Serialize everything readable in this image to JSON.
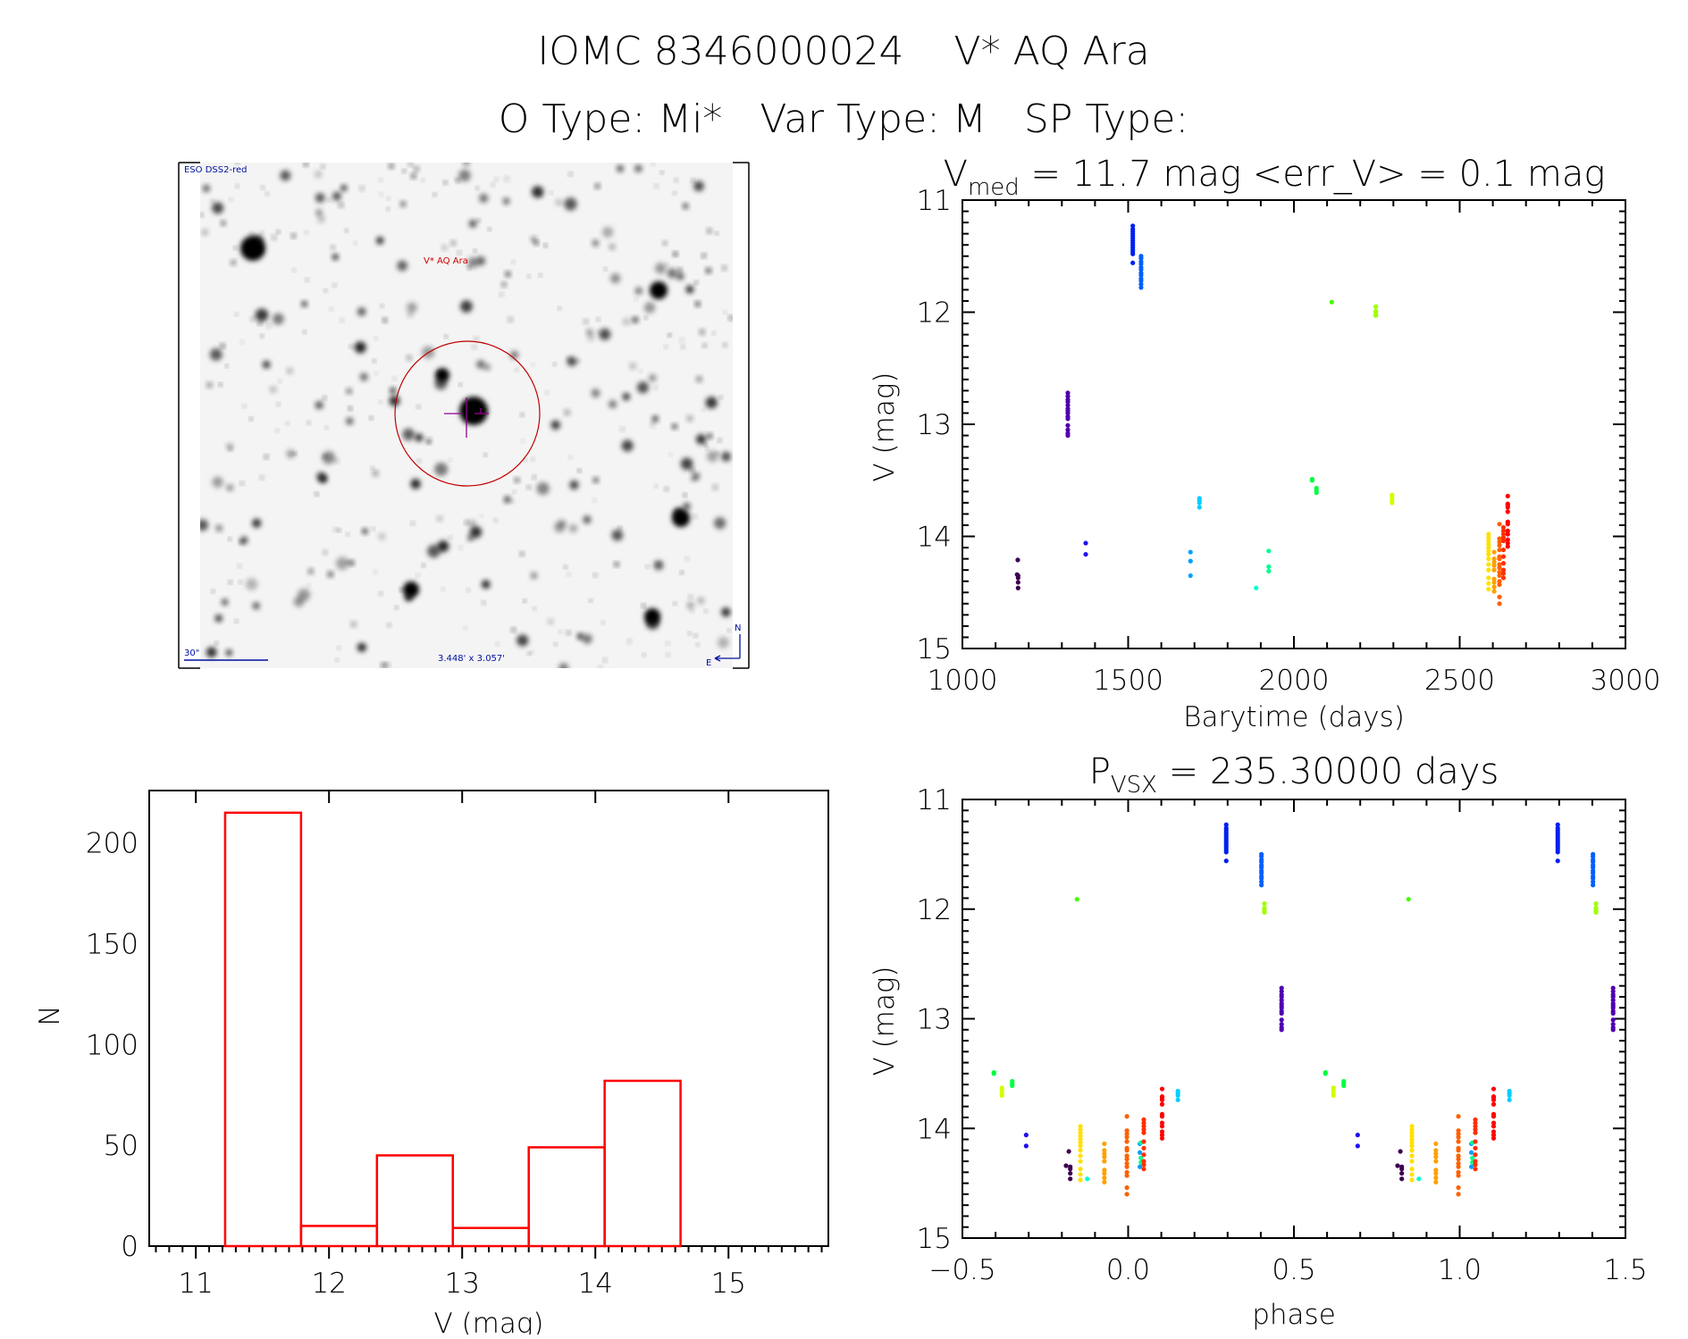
{
  "header": {
    "title": "IOMC 8346000024    V* AQ Ara",
    "subtitle": "O Type: Mi*   Var Type: M   SP Type:"
  },
  "image": {
    "survey_label": "ESO DSS2-red",
    "target_label": "V* AQ Ara",
    "scale_label": "30\"",
    "fov_label": "3.448' x 3.057'",
    "north_label": "N",
    "east_label": "E"
  },
  "chart_data": [
    {
      "type": "scatter",
      "title_main": "V",
      "title_sub": "med",
      "title_rest": " = 11.7 mag <err_V> = 0.1 mag",
      "xlabel": "Barytime (days)",
      "ylabel": "V (mag)",
      "xlim": [
        1000,
        3000
      ],
      "ylim": [
        15,
        11
      ],
      "x_ticks": [
        "1000",
        "1500",
        "2000",
        "2500",
        "3000"
      ],
      "x_tick_values": [
        1000,
        1500,
        2000,
        2500,
        3000
      ],
      "y_ticks": [
        "11",
        "12",
        "13",
        "14",
        "15"
      ],
      "y_tick_values": [
        11,
        12,
        13,
        14,
        15
      ],
      "series": [
        {
          "color": "#3c0050",
          "points": [
            [
              1167,
              14.21
            ],
            [
              1165,
              14.34
            ],
            [
              1168,
              14.35
            ],
            [
              1168,
              14.37
            ],
            [
              1168,
              14.41
            ],
            [
              1168,
              14.46
            ]
          ]
        },
        {
          "color": "#5000b0",
          "points": [
            [
              1318,
              12.72
            ],
            [
              1318,
              12.75
            ],
            [
              1318,
              12.78
            ],
            [
              1318,
              12.8
            ],
            [
              1318,
              12.83
            ],
            [
              1318,
              12.86
            ],
            [
              1318,
              12.88
            ],
            [
              1318,
              12.9
            ],
            [
              1318,
              12.93
            ],
            [
              1318,
              12.95
            ],
            [
              1318,
              13.01
            ],
            [
              1318,
              13.05
            ],
            [
              1318,
              13.08
            ],
            [
              1318,
              13.1
            ]
          ]
        },
        {
          "color": "#2010f0",
          "points": [
            [
              1372,
              14.06
            ],
            [
              1372,
              14.16
            ]
          ]
        },
        {
          "color": "#0020f0",
          "points": [
            [
              1514,
              11.23
            ],
            [
              1514,
              11.26
            ],
            [
              1514,
              11.28
            ],
            [
              1514,
              11.3
            ],
            [
              1514,
              11.32
            ],
            [
              1514,
              11.34
            ],
            [
              1514,
              11.36
            ],
            [
              1514,
              11.38
            ],
            [
              1514,
              11.4
            ],
            [
              1514,
              11.42
            ],
            [
              1514,
              11.44
            ],
            [
              1514,
              11.46
            ],
            [
              1514,
              11.48
            ],
            [
              1514,
              11.56
            ]
          ]
        },
        {
          "color": "#0060ff",
          "points": [
            [
              1539,
              11.5
            ],
            [
              1539,
              11.52
            ],
            [
              1539,
              11.55
            ],
            [
              1539,
              11.57
            ],
            [
              1539,
              11.6
            ],
            [
              1539,
              11.62
            ],
            [
              1539,
              11.65
            ],
            [
              1539,
              11.67
            ],
            [
              1539,
              11.7
            ],
            [
              1539,
              11.72
            ],
            [
              1539,
              11.75
            ],
            [
              1539,
              11.78
            ]
          ]
        },
        {
          "color": "#00a0ff",
          "points": [
            [
              1688,
              14.14
            ],
            [
              1688,
              14.22
            ],
            [
              1688,
              14.35
            ]
          ]
        },
        {
          "color": "#00d0ff",
          "points": [
            [
              1715,
              13.66
            ],
            [
              1715,
              13.68
            ],
            [
              1715,
              13.7
            ],
            [
              1715,
              13.74
            ]
          ]
        },
        {
          "color": "#00ffd0",
          "points": [
            [
              1886,
              14.46
            ]
          ]
        },
        {
          "color": "#00ff90",
          "points": [
            [
              1924,
              14.13
            ],
            [
              1924,
              14.27
            ],
            [
              1924,
              14.31
            ]
          ]
        },
        {
          "color": "#00ff40",
          "points": [
            [
              2055,
              13.49
            ],
            [
              2055,
              13.5
            ],
            [
              2068,
              13.57
            ],
            [
              2068,
              13.59
            ],
            [
              2068,
              13.61
            ]
          ]
        },
        {
          "color": "#40ff00",
          "points": [
            [
              2114,
              11.91
            ]
          ]
        },
        {
          "color": "#a0ff00",
          "points": [
            [
              2247,
              11.95
            ],
            [
              2247,
              11.99
            ],
            [
              2247,
              12.0
            ],
            [
              2247,
              12.02
            ],
            [
              2247,
              12.03
            ]
          ]
        },
        {
          "color": "#d0ff00",
          "points": [
            [
              2296,
              13.63
            ],
            [
              2296,
              13.65
            ],
            [
              2296,
              13.68
            ],
            [
              2296,
              13.7
            ]
          ]
        },
        {
          "color": "#ffe000",
          "points": [
            [
              2587,
              13.98
            ],
            [
              2587,
              14.01
            ],
            [
              2587,
              14.04
            ],
            [
              2587,
              14.07
            ],
            [
              2587,
              14.1
            ],
            [
              2587,
              14.13
            ],
            [
              2587,
              14.16
            ],
            [
              2587,
              14.2
            ],
            [
              2587,
              14.25
            ],
            [
              2587,
              14.3
            ],
            [
              2587,
              14.37
            ],
            [
              2587,
              14.42
            ],
            [
              2587,
              14.47
            ]
          ]
        },
        {
          "color": "#ffa000",
          "points": [
            [
              2604,
              14.14
            ],
            [
              2604,
              14.2
            ],
            [
              2604,
              14.23
            ],
            [
              2604,
              14.26
            ],
            [
              2604,
              14.3
            ],
            [
              2604,
              14.38
            ],
            [
              2604,
              14.41
            ],
            [
              2604,
              14.45
            ],
            [
              2604,
              14.49
            ]
          ]
        },
        {
          "color": "#ff6000",
          "points": [
            [
              2620,
              13.89
            ],
            [
              2620,
              14.02
            ],
            [
              2620,
              14.05
            ],
            [
              2620,
              14.08
            ],
            [
              2620,
              14.12
            ],
            [
              2620,
              14.18
            ],
            [
              2620,
              14.2
            ],
            [
              2620,
              14.25
            ],
            [
              2620,
              14.28
            ],
            [
              2620,
              14.32
            ],
            [
              2620,
              14.35
            ],
            [
              2620,
              14.4
            ],
            [
              2620,
              14.43
            ],
            [
              2620,
              14.54
            ],
            [
              2620,
              14.6
            ]
          ]
        },
        {
          "color": "#ff3000",
          "points": [
            [
              2632,
              13.92
            ],
            [
              2632,
              13.95
            ],
            [
              2632,
              13.98
            ],
            [
              2632,
              14.01
            ],
            [
              2632,
              14.04
            ],
            [
              2632,
              14.12
            ],
            [
              2632,
              14.18
            ],
            [
              2632,
              14.24
            ],
            [
              2632,
              14.3
            ],
            [
              2632,
              14.33
            ],
            [
              2632,
              14.37
            ]
          ]
        },
        {
          "color": "#ff0000",
          "points": [
            [
              2645,
              13.64
            ],
            [
              2645,
              13.71
            ],
            [
              2645,
              13.72
            ],
            [
              2645,
              13.74
            ],
            [
              2645,
              13.78
            ],
            [
              2645,
              13.87
            ],
            [
              2645,
              13.89
            ],
            [
              2645,
              13.95
            ],
            [
              2645,
              13.98
            ],
            [
              2645,
              14.03
            ],
            [
              2645,
              14.06
            ],
            [
              2645,
              14.09
            ]
          ]
        }
      ]
    },
    {
      "type": "scatter",
      "title_main": "P",
      "title_sub": "VSX",
      "title_rest": " = 235.30000 days",
      "period": 235.3,
      "phase_zero_time": 1444.4,
      "xlabel": "phase",
      "ylabel": "V (mag)",
      "xlim": [
        -0.5,
        1.5
      ],
      "ylim": [
        15,
        11
      ],
      "x_ticks": [
        "−0.5",
        "0.0",
        "0.5",
        "1.0",
        "1.5"
      ],
      "x_tick_values": [
        -0.5,
        0,
        0.5,
        1,
        1.5
      ],
      "y_ticks": [
        "11",
        "12",
        "13",
        "14",
        "15"
      ],
      "y_tick_values": [
        11,
        12,
        13,
        14,
        15
      ]
    },
    {
      "type": "bar",
      "xlabel": "V (mag)",
      "ylabel": "N",
      "xlim": [
        10.65,
        15.75
      ],
      "ylim": [
        0,
        226
      ],
      "bin_edges": [
        11.22,
        11.79,
        12.36,
        12.93,
        13.5,
        14.07,
        14.64
      ],
      "counts": [
        215,
        10,
        45,
        9,
        49,
        82
      ],
      "bar_color": "#ff0000",
      "x_ticks": [
        "11",
        "12",
        "13",
        "14",
        "15"
      ],
      "x_tick_values": [
        11,
        12,
        13,
        14,
        15
      ],
      "y_ticks": [
        "0",
        "50",
        "100",
        "150",
        "200"
      ],
      "y_tick_values": [
        0,
        50,
        100,
        150,
        200
      ]
    }
  ]
}
